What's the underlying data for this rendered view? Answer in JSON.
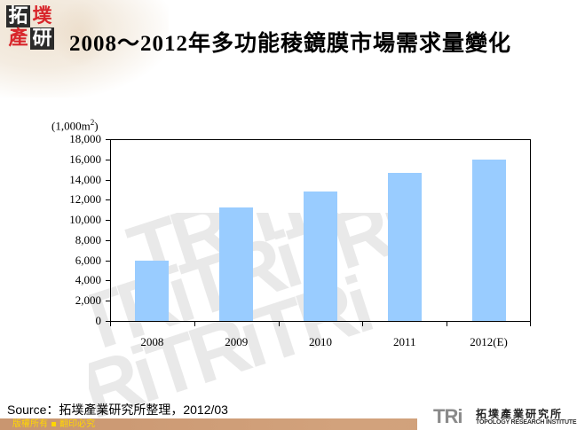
{
  "header": {
    "logo_chars": [
      "拓",
      "墣",
      "產",
      "研"
    ],
    "title": "2008～2012年多功能稜鏡膜市場需求量變化"
  },
  "chart_data": {
    "type": "bar",
    "title": "2008～2012年多功能稜鏡膜市場需求量變化",
    "xlabel": "",
    "ylabel": "(1,000m2)",
    "unit_label": "(1,000m",
    "unit_sup": "2",
    "unit_close": ")",
    "categories": [
      "2008",
      "2009",
      "2010",
      "2011",
      "2012(E)"
    ],
    "values": [
      6000,
      11200,
      12800,
      14700,
      16000
    ],
    "ylim": [
      0,
      18000
    ],
    "yticks": [
      "18,000",
      "16,000",
      "14,000",
      "12,000",
      "10,000",
      "8,000",
      "6,000",
      "4,000",
      "2,000",
      "0"
    ],
    "ytick_values": [
      18000,
      16000,
      14000,
      12000,
      10000,
      8000,
      6000,
      4000,
      2000,
      0
    ],
    "bar_color": "#99ccff",
    "grid": false,
    "legend": "none"
  },
  "source": {
    "text": "Source：拓墣產業研究所整理，2012/03"
  },
  "footer": {
    "copyright": "版權所有 ▪ 翻印必究",
    "brand_mark": "TRi",
    "brand_cn": "拓墣產業研究所",
    "brand_en": "TOPOLOGY RESEARCH INSTITUTE",
    "band_color": "#c99670",
    "text_color": "#ffd700"
  },
  "watermark": {
    "text": "TRiTRiTRi"
  }
}
